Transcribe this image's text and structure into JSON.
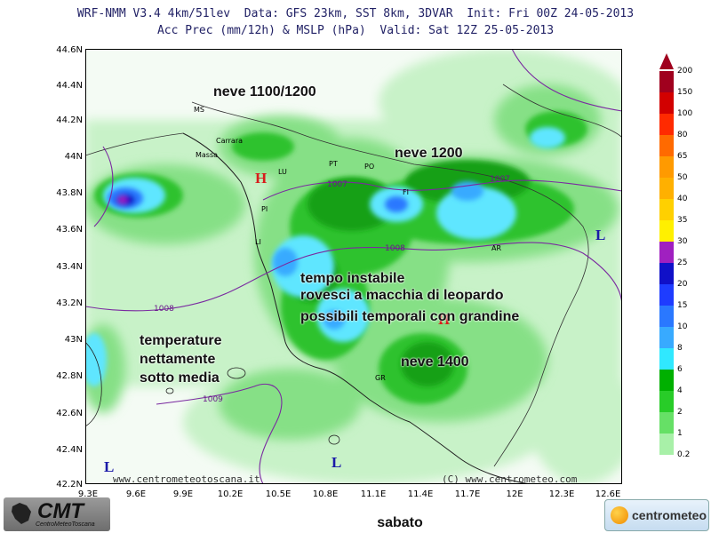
{
  "header": {
    "line1": "WRF-NMM V3.4 4km/51lev  Data: GFS 23km, SST 8km, 3DVAR  Init: Fri 00Z 24-05-2013",
    "line2": "Acc Prec (mm/12h) & MSLP (hPa)  Valid: Sat 12Z 25-05-2013"
  },
  "axes": {
    "lat_labels": [
      "44.6N",
      "44.4N",
      "44.2N",
      "44N",
      "43.8N",
      "43.6N",
      "43.4N",
      "43.2N",
      "43N",
      "42.8N",
      "42.6N",
      "42.4N",
      "42.2N"
    ],
    "lon_labels": [
      "9.3E",
      "9.6E",
      "9.9E",
      "10.2E",
      "10.5E",
      "10.8E",
      "11.1E",
      "11.4E",
      "11.7E",
      "12E",
      "12.3E",
      "12.6E"
    ]
  },
  "annotations": {
    "neve_nw": "neve 1100/1200",
    "neve_ne": "neve 1200",
    "instabile_1": "tempo instabile",
    "instabile_2": "rovesci a macchia di leopardo",
    "instabile_3": "possibili temporali con grandine",
    "temp_1": "temperature",
    "temp_2": "nettamente",
    "temp_3": "sotto media",
    "neve_s": "neve 1400"
  },
  "cities": {
    "ms": "MS",
    "carrara": "Carrara",
    "massa": "Massa",
    "lu": "LU",
    "pi": "PI",
    "li": "LI",
    "pt": "PT",
    "po": "PO",
    "fi": "FI",
    "ar": "AR",
    "gr": "GR"
  },
  "isobars": {
    "i1007a": "1007",
    "i1007b": "1007",
    "i1008a": "1008",
    "i1008b": "1008",
    "i1009": "1009"
  },
  "pressure_centers": {
    "h1": "H",
    "h2": "H",
    "l1": "L",
    "l2": "L",
    "l3": "L"
  },
  "legend": {
    "levels": [
      "200",
      "150",
      "100",
      "80",
      "65",
      "50",
      "40",
      "35",
      "30",
      "25",
      "20",
      "15",
      "10",
      "8",
      "6",
      "4",
      "2",
      "1",
      "0.2"
    ],
    "colors": [
      "#a0001e",
      "#d20000",
      "#ff2a00",
      "#ff6a00",
      "#ff9a00",
      "#ffb000",
      "#ffd000",
      "#fff000",
      "#a020c0",
      "#1010c8",
      "#1e3cff",
      "#2a78ff",
      "#38aaff",
      "#30e8ff",
      "#00b000",
      "#28cc28",
      "#66e066",
      "#a8f0a8"
    ]
  },
  "credits": {
    "left": "www.centrometeotoscana.it",
    "right": "(C) www.centrometeo.com"
  },
  "day_label": "sabato",
  "logos": {
    "cmt": "CMT",
    "cmt_sub": "CentroMeteoToscana",
    "centrometeo": "centrometeo"
  }
}
